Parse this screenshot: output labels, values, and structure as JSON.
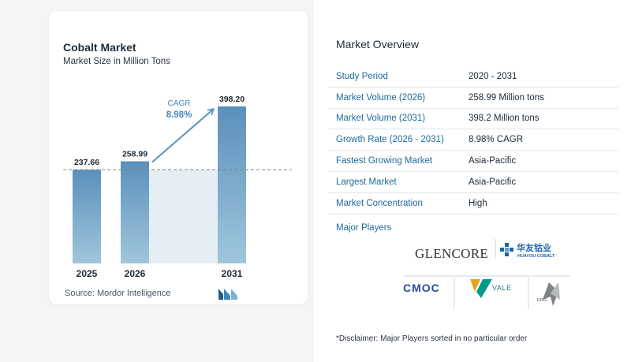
{
  "chart_data": {
    "type": "bar",
    "title": "Cobalt Market",
    "subtitle": "Market Size in Million Tons",
    "categories": [
      "2025",
      "2026",
      "2031"
    ],
    "values": [
      237.66,
      258.99,
      398.2
    ],
    "value_labels": [
      "237.66",
      "258.99",
      "398.20"
    ],
    "ylim": [
      0,
      420
    ],
    "grid": false,
    "reference_line_value": 237.66,
    "annotation": {
      "label": "CAGR",
      "value": "8.98%"
    },
    "colors": {
      "bar_top": "#5b90bb",
      "bar_bottom": "#9fc6dc",
      "arrow": "#5c93bd",
      "band": "#e6eef5",
      "annotation": "#4a86b8"
    }
  },
  "source": {
    "label": "Source:",
    "name": "Mordor Intelligence"
  },
  "overview": {
    "title": "Market Overview",
    "rows": [
      {
        "label": "Study Period",
        "value": "2020 - 2031"
      },
      {
        "label": "Market Volume (2026)",
        "value": "258.99 Million tons"
      },
      {
        "label": "Market Volume (2031)",
        "value": "398.2 Million tons"
      },
      {
        "label": "Growth Rate (2026 - 2031)",
        "value": "8.98% CAGR"
      },
      {
        "label": "Fastest Growing Market",
        "value": "Asia-Pacific"
      },
      {
        "label": "Largest Market",
        "value": "Asia-Pacific"
      },
      {
        "label": "Market Concentration",
        "value": "High"
      }
    ],
    "players_label": "Major Players",
    "players": [
      {
        "name": "GLENCORE"
      },
      {
        "name": "华友钴业",
        "sub": "HUAYOU COBALT"
      },
      {
        "name": "CMOC"
      },
      {
        "name": "VALE"
      },
      {
        "name": "ERG"
      }
    ],
    "disclaimer": "*Disclaimer: Major Players sorted in no particular order"
  }
}
